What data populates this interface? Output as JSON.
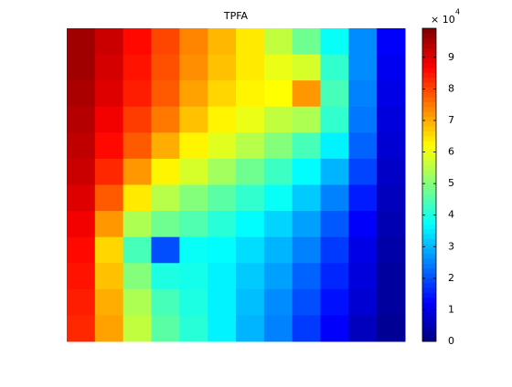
{
  "chart_data": {
    "type": "heatmap",
    "title": "TPFA",
    "colormap": "jet",
    "z": [
      [
        9.6,
        9.2,
        8.6,
        8.0,
        7.4,
        6.9,
        6.4,
        5.6,
        4.8,
        3.8,
        2.6,
        1.2
      ],
      [
        9.6,
        9.1,
        8.5,
        7.9,
        7.3,
        6.8,
        6.4,
        6.0,
        5.8,
        4.2,
        2.6,
        1.1
      ],
      [
        9.5,
        9.0,
        8.4,
        7.8,
        7.1,
        6.6,
        6.3,
        6.2,
        7.2,
        4.4,
        2.5,
        1.0
      ],
      [
        9.4,
        8.8,
        8.1,
        7.5,
        6.8,
        6.3,
        6.0,
        5.6,
        5.4,
        4.2,
        2.4,
        0.9
      ],
      [
        9.3,
        8.6,
        7.8,
        7.0,
        6.3,
        5.9,
        5.5,
        5.0,
        4.4,
        3.6,
        2.2,
        0.8
      ],
      [
        9.2,
        8.3,
        7.2,
        6.3,
        5.8,
        5.3,
        4.8,
        4.3,
        3.7,
        3.0,
        1.9,
        0.7
      ],
      [
        9.0,
        7.8,
        6.4,
        5.5,
        5.0,
        4.6,
        4.2,
        3.8,
        3.2,
        2.5,
        1.5,
        0.6
      ],
      [
        8.8,
        7.2,
        5.4,
        4.8,
        4.5,
        4.1,
        3.7,
        3.3,
        2.8,
        2.1,
        1.2,
        0.5
      ],
      [
        8.6,
        6.6,
        4.4,
        2.0,
        3.8,
        3.7,
        3.4,
        3.0,
        2.5,
        1.8,
        1.0,
        0.4
      ],
      [
        8.5,
        6.8,
        5.0,
        4.0,
        3.9,
        3.6,
        3.2,
        2.8,
        2.2,
        1.6,
        0.9,
        0.3
      ],
      [
        8.4,
        7.0,
        5.4,
        4.4,
        4.0,
        3.6,
        3.1,
        2.6,
        2.0,
        1.4,
        0.8,
        0.3
      ],
      [
        8.3,
        7.1,
        5.6,
        4.6,
        4.1,
        3.6,
        3.0,
        2.5,
        1.8,
        1.2,
        0.6,
        0.2
      ]
    ],
    "clim": [
      0,
      9.92
    ],
    "colorbar_ticks": [
      0,
      1,
      2,
      3,
      4,
      5,
      6,
      7,
      8,
      9
    ],
    "colorbar_multiplier": "× 10",
    "colorbar_exponent": "4"
  }
}
